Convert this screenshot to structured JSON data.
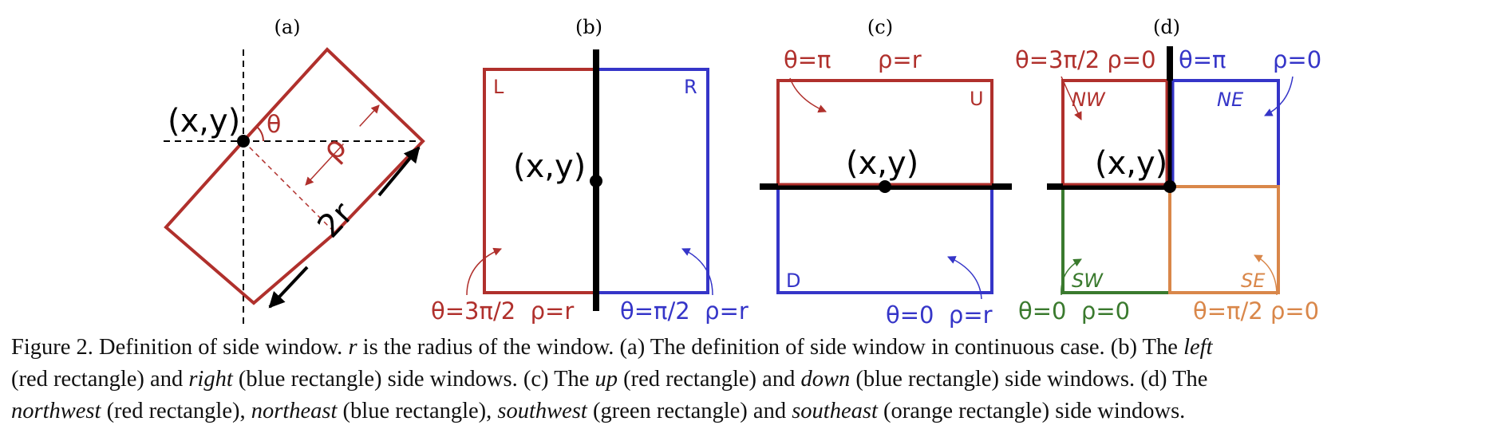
{
  "colors": {
    "red": "#b0302c",
    "blue": "#3535c8",
    "green": "#3a7a2e",
    "orange": "#d9874a",
    "black": "#000000"
  },
  "panels": {
    "a": {
      "label": "(a)",
      "point": "(x,y)",
      "theta": "θ",
      "rho": "ρ",
      "width": "2r"
    },
    "b": {
      "label": "(b)",
      "point": "(x,y)",
      "left_tag": "L",
      "right_tag": "R",
      "left_params": "θ=3π/2  ρ=r",
      "right_params": "θ=π/2  ρ=r"
    },
    "c": {
      "label": "(c)",
      "point": "(x,y)",
      "up_tag": "U",
      "down_tag": "D",
      "up_theta": "θ=π",
      "up_rho": "ρ=r",
      "down_params": "θ=0  ρ=r"
    },
    "d": {
      "label": "(d)",
      "point": "(x,y)",
      "nw_tag": "NW",
      "ne_tag": "NE",
      "sw_tag": "SW",
      "se_tag": "SE",
      "nw_params": "θ=3π/2 ρ=0",
      "ne_theta": "θ=π",
      "ne_rho": "ρ=0",
      "sw_params": "θ=0  ρ=0",
      "se_params": "θ=π/2 ρ=0"
    }
  },
  "caption": {
    "l1_a": "Figure 2. Definition of side window. ",
    "l1_r": "r",
    "l1_b": " is the radius of the window. (a) The definition of side window in continuous case. (b) The ",
    "l1_left": "left",
    "l2_a": "(red rectangle) and ",
    "l2_right": "right",
    "l2_b": " (blue rectangle) side windows. (c) The ",
    "l2_up": "up",
    "l2_c": " (red rectangle) and ",
    "l2_down": "down",
    "l2_d": " (blue rectangle) side windows. (d) The",
    "l3_nw": "northwest",
    "l3_a": " (red rectangle), ",
    "l3_ne": "northeast",
    "l3_b": " (blue rectangle), ",
    "l3_sw": "southwest",
    "l3_c": " (green rectangle) and ",
    "l3_se": "southeast",
    "l3_d": " (orange rectangle) side windows."
  }
}
